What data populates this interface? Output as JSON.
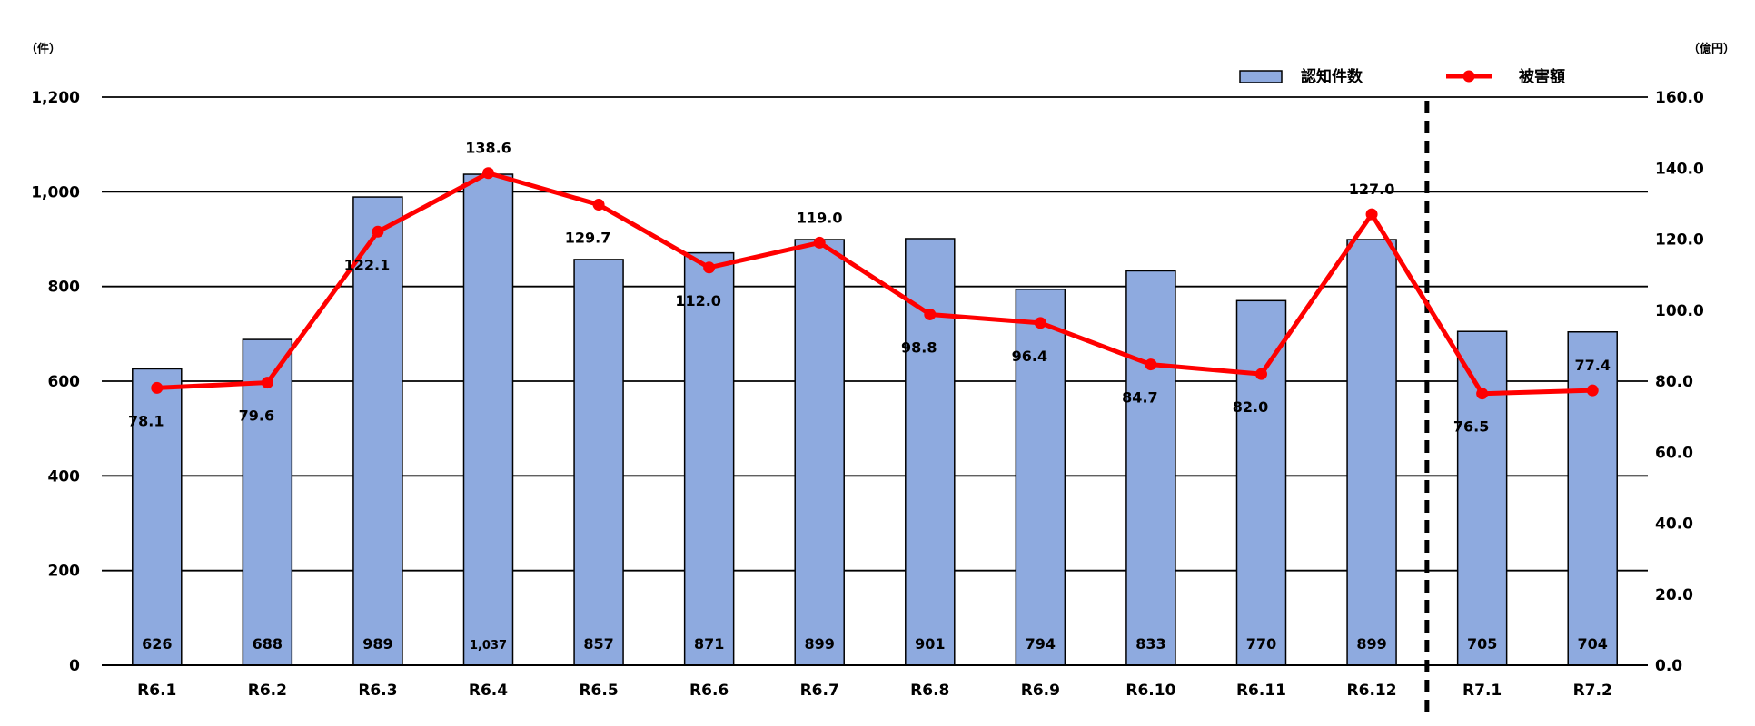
{
  "colors": {
    "bar_fill": "#8EAADF",
    "bar_stroke": "#000000",
    "line": "#FF0000",
    "grid": "#000000",
    "divider": "#000000"
  },
  "chart_data": {
    "type": "bar",
    "categories": [
      "R6.1",
      "R6.2",
      "R6.3",
      "R6.4",
      "R6.5",
      "R6.6",
      "R6.7",
      "R6.8",
      "R6.9",
      "R6.10",
      "R6.11",
      "R6.12",
      "R7.1",
      "R7.2"
    ],
    "series": [
      {
        "name": "認知件数",
        "kind": "bar",
        "axis": "left",
        "values": [
          626,
          688,
          989,
          1037,
          857,
          871,
          899,
          901,
          794,
          833,
          770,
          899,
          705,
          704
        ],
        "labels": [
          "626",
          "688",
          "989",
          "1,037",
          "857",
          "871",
          "899",
          "901",
          "794",
          "833",
          "770",
          "899",
          "705",
          "704"
        ]
      },
      {
        "name": "被害額",
        "kind": "line",
        "axis": "right",
        "values": [
          78.1,
          79.6,
          122.1,
          138.6,
          129.7,
          112.0,
          119.0,
          98.8,
          96.4,
          84.7,
          82.0,
          127.0,
          76.5,
          77.4
        ],
        "labels": [
          "78.1",
          "79.6",
          "122.1",
          "138.6",
          "129.7",
          "112.0",
          "119.0",
          "98.8",
          "96.4",
          "84.7",
          "82.0",
          "127.0",
          "76.5",
          "77.4"
        ]
      }
    ],
    "y_left": {
      "unit": "（件）",
      "range": [
        0,
        1200
      ],
      "ticks": [
        0,
        200,
        400,
        600,
        800,
        1000,
        1200
      ],
      "tick_labels": [
        "0",
        "200",
        "400",
        "600",
        "800",
        "1,000",
        "1,200"
      ]
    },
    "y_right": {
      "unit": "（億円）",
      "range": [
        0,
        160
      ],
      "ticks": [
        0,
        20,
        40,
        60,
        80,
        100,
        120,
        140,
        160
      ],
      "tick_labels": [
        "0.0",
        "20.0",
        "40.0",
        "60.0",
        "80.0",
        "100.0",
        "120.0",
        "140.0",
        "160.0"
      ]
    },
    "gridlines": "horizontal",
    "legend": {
      "position": "top-right",
      "entries": [
        "認知件数",
        "被害額"
      ]
    },
    "divider": {
      "type": "dashed-vertical",
      "between": [
        "R6.12",
        "R7.1"
      ]
    }
  }
}
